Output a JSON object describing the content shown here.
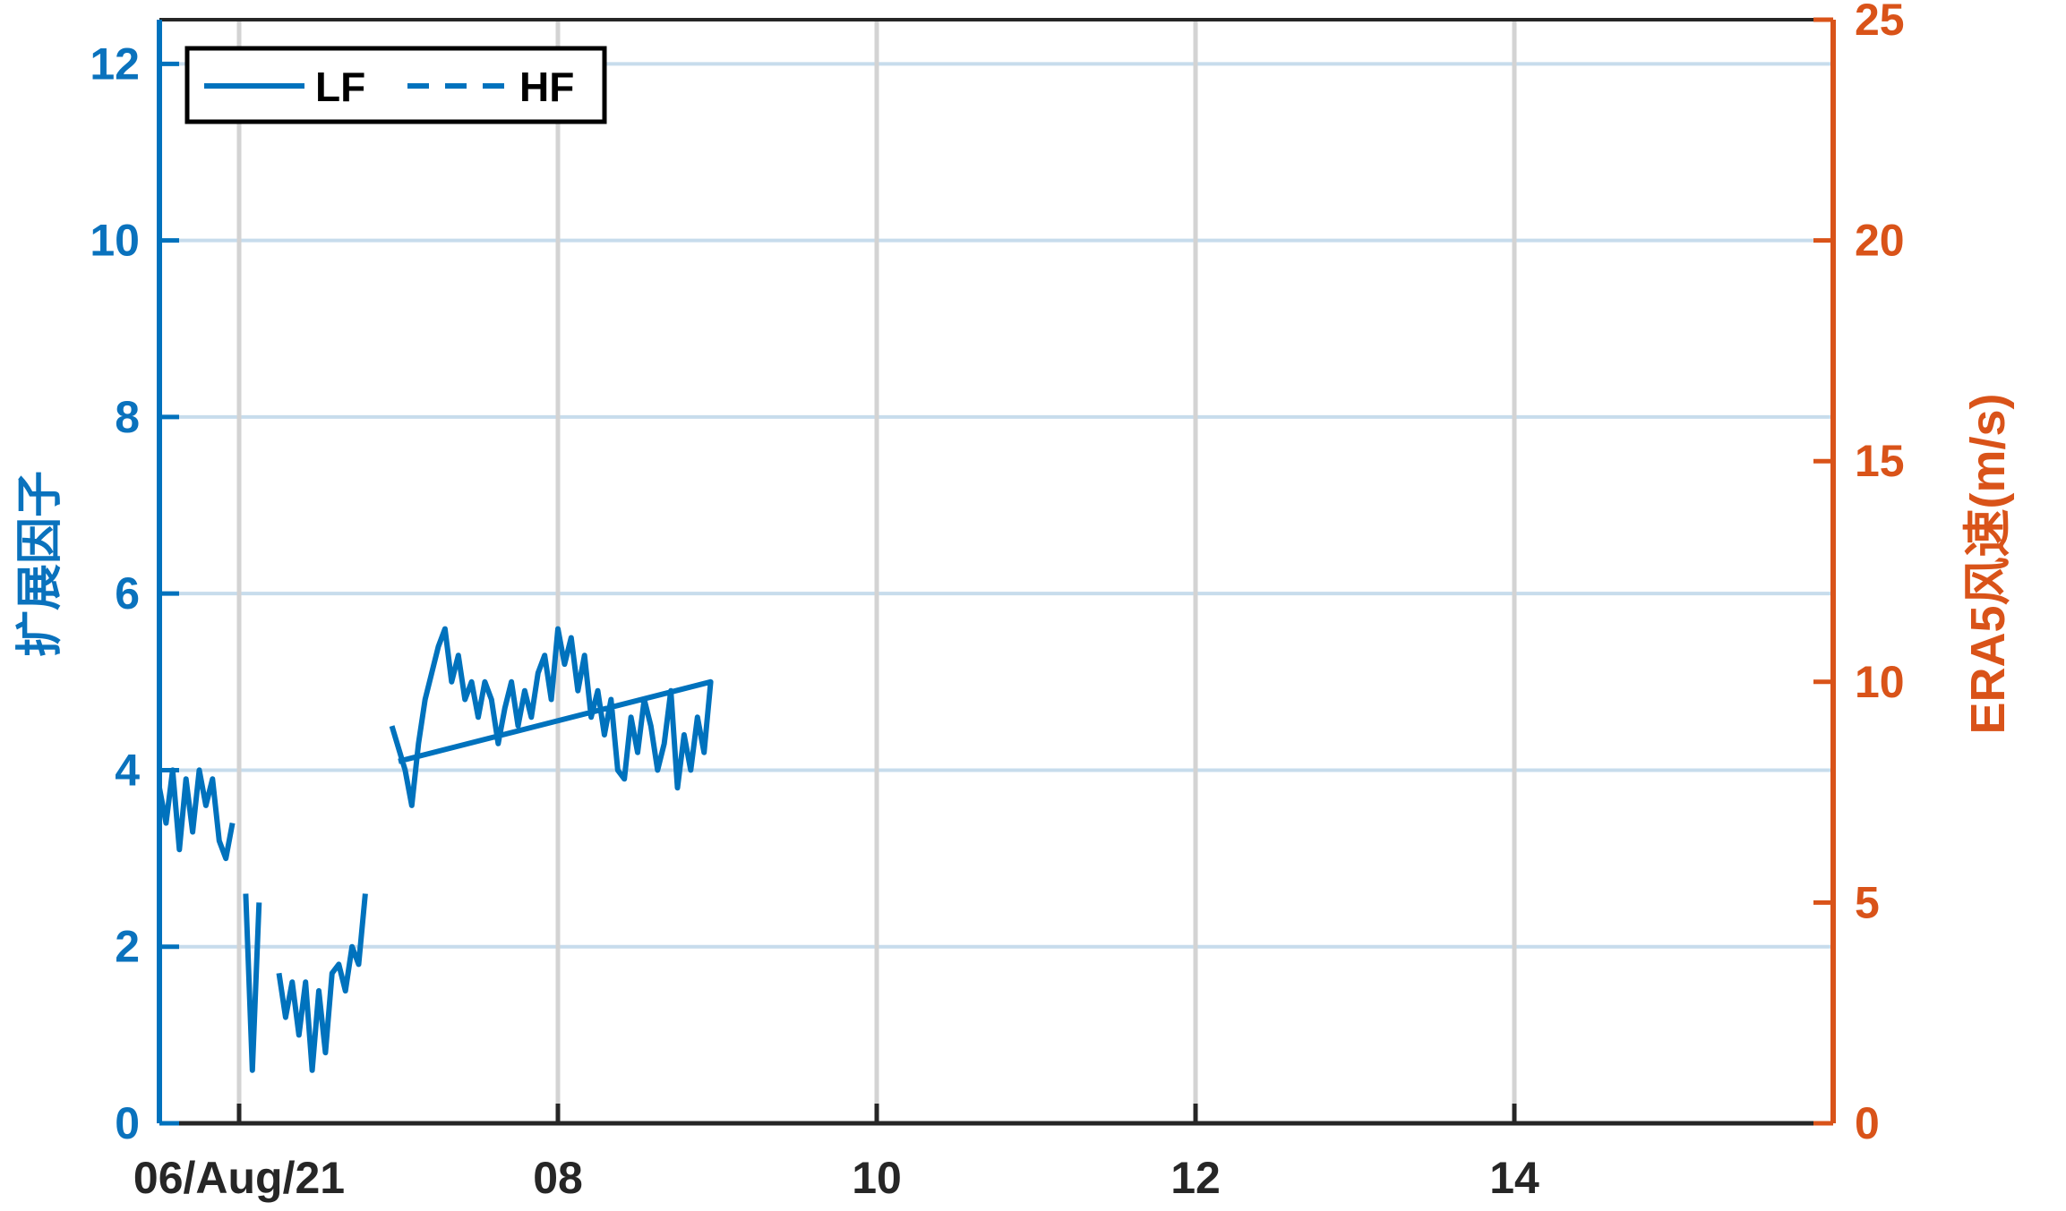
{
  "chart_data": {
    "type": "line",
    "x_axis": {
      "type": "date",
      "range": [
        "2021-08-05T12:00",
        "2021-08-16T00:00"
      ],
      "ticks": [
        {
          "value": "2021-08-06",
          "label": "06/Aug/21"
        },
        {
          "value": "2021-08-08",
          "label": "08"
        },
        {
          "value": "2021-08-10",
          "label": "10"
        },
        {
          "value": "2021-08-12",
          "label": "12"
        },
        {
          "value": "2021-08-14",
          "label": "14"
        }
      ]
    },
    "y_left": {
      "label": "扩展因子",
      "ylim": [
        0,
        12.5
      ],
      "ticks": [
        {
          "value": 0,
          "label": "0"
        },
        {
          "value": 2,
          "label": "2"
        },
        {
          "value": 4,
          "label": "4"
        },
        {
          "value": 6,
          "label": "6"
        },
        {
          "value": 8,
          "label": "8"
        },
        {
          "value": 10,
          "label": "10"
        },
        {
          "value": 12,
          "label": "12"
        }
      ],
      "color": "#0072bd"
    },
    "y_right": {
      "label": "ERA5风速(m/s)",
      "ylim": [
        0,
        25
      ],
      "ticks": [
        {
          "value": 0,
          "label": "0"
        },
        {
          "value": 5,
          "label": "5"
        },
        {
          "value": 10,
          "label": "10"
        },
        {
          "value": 15,
          "label": "15"
        },
        {
          "value": 20,
          "label": "20"
        },
        {
          "value": 25,
          "label": "25"
        }
      ],
      "color": "#d95319"
    },
    "grid": true,
    "legend": {
      "placement": "top-left",
      "entries": [
        {
          "name": "LF",
          "style": "solid",
          "color": "#0072bd"
        },
        {
          "name": "HF",
          "style": "dashed",
          "color": "#0072bd"
        }
      ]
    },
    "series": [
      {
        "name": "LF",
        "axis": "left",
        "color": "#0072bd",
        "style": "solid",
        "points": [
          [
            "2021-08-05T12:00",
            3.8
          ],
          [
            "2021-08-05T13:00",
            3.4
          ],
          [
            "2021-08-05T14:00",
            4.0
          ],
          [
            "2021-08-05T15:00",
            3.1
          ],
          [
            "2021-08-05T16:00",
            3.9
          ],
          [
            "2021-08-05T17:00",
            3.3
          ],
          [
            "2021-08-05T18:00",
            4.0
          ],
          [
            "2021-08-05T19:00",
            3.6
          ],
          [
            "2021-08-05T20:00",
            3.9
          ],
          [
            "2021-08-05T21:00",
            3.2
          ],
          [
            "2021-08-05T22:00",
            3.0
          ],
          [
            "2021-08-05T23:00",
            3.4
          ],
          [
            null,
            null
          ],
          [
            "2021-08-06T01:00",
            2.6
          ],
          [
            "2021-08-06T02:00",
            0.6
          ],
          [
            "2021-08-06T03:00",
            2.5
          ],
          [
            null,
            null
          ],
          [
            "2021-08-06T06:00",
            1.7
          ],
          [
            "2021-08-06T07:00",
            1.2
          ],
          [
            "2021-08-06T08:00",
            1.6
          ],
          [
            "2021-08-06T09:00",
            1.0
          ],
          [
            "2021-08-06T10:00",
            1.6
          ],
          [
            "2021-08-06T11:00",
            0.6
          ],
          [
            "2021-08-06T12:00",
            1.5
          ],
          [
            "2021-08-06T13:00",
            0.8
          ],
          [
            "2021-08-06T14:00",
            1.7
          ],
          [
            "2021-08-06T15:00",
            1.8
          ],
          [
            "2021-08-06T16:00",
            1.5
          ],
          [
            "2021-08-06T17:00",
            2.0
          ],
          [
            "2021-08-06T18:00",
            1.8
          ],
          [
            "2021-08-06T19:00",
            2.6
          ],
          [
            null,
            null
          ],
          [
            "2021-08-06T23:00",
            4.5
          ],
          [
            "2021-08-07T01:00",
            4.0
          ],
          [
            "2021-08-07T02:00",
            3.6
          ],
          [
            "2021-08-07T03:00",
            4.3
          ],
          [
            "2021-08-07T04:00",
            4.8
          ],
          [
            "2021-08-07T05:00",
            5.1
          ],
          [
            "2021-08-07T06:00",
            5.4
          ],
          [
            "2021-08-07T07:00",
            5.6
          ],
          [
            "2021-08-07T08:00",
            5.0
          ],
          [
            "2021-08-07T09:00",
            5.3
          ],
          [
            "2021-08-07T10:00",
            4.8
          ],
          [
            "2021-08-07T11:00",
            5.0
          ],
          [
            "2021-08-07T12:00",
            4.6
          ],
          [
            "2021-08-07T13:00",
            5.0
          ],
          [
            "2021-08-07T14:00",
            4.8
          ],
          [
            "2021-08-07T15:00",
            4.3
          ],
          [
            "2021-08-07T16:00",
            4.7
          ],
          [
            "2021-08-07T17:00",
            5.0
          ],
          [
            "2021-08-07T18:00",
            4.5
          ],
          [
            "2021-08-07T19:00",
            4.9
          ],
          [
            "2021-08-07T20:00",
            4.6
          ],
          [
            "2021-08-07T21:00",
            5.1
          ],
          [
            "2021-08-07T22:00",
            5.3
          ],
          [
            "2021-08-07T23:00",
            4.8
          ],
          [
            "2021-08-08T00:00",
            5.6
          ],
          [
            "2021-08-08T01:00",
            5.2
          ],
          [
            "2021-08-08T02:00",
            5.5
          ],
          [
            "2021-08-08T03:00",
            4.9
          ],
          [
            "2021-08-08T04:00",
            5.3
          ],
          [
            "2021-08-08T05:00",
            4.6
          ],
          [
            "2021-08-08T06:00",
            4.9
          ],
          [
            "2021-08-08T07:00",
            4.4
          ],
          [
            "2021-08-08T08:00",
            4.8
          ],
          [
            "2021-08-08T09:00",
            4.0
          ],
          [
            "2021-08-08T10:00",
            3.9
          ],
          [
            "2021-08-08T11:00",
            4.6
          ],
          [
            "2021-08-08T12:00",
            4.2
          ],
          [
            "2021-08-08T13:00",
            4.8
          ],
          [
            "2021-08-08T14:00",
            4.5
          ],
          [
            "2021-08-08T15:00",
            4.0
          ],
          [
            "2021-08-08T16:00",
            4.3
          ],
          [
            "2021-08-08T17:00",
            4.9
          ],
          [
            "2021-08-08T18:00",
            3.8
          ],
          [
            "2021-08-08T19:00",
            4.4
          ],
          [
            "2021-08-08T20:00",
            4.0
          ],
          [
            "2021-08-08T21:00",
            4.6
          ],
          [
            "2021-08-08T22:00",
            4.2
          ],
          [
            "2021-08-08T23:00",
            5.0
          ],
          [
            "2021-08-07T00:00",
            4.1
          ]
        ]
      }
    ]
  }
}
